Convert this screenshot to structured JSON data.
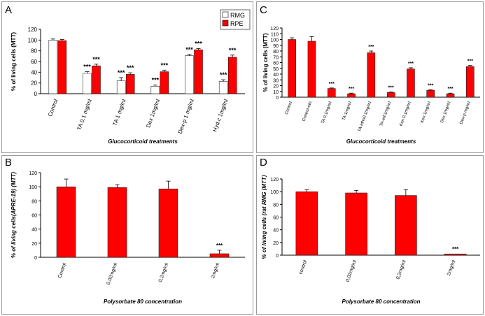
{
  "colors": {
    "rmg": "#ffffff",
    "rpe": "#ff0000",
    "bar": "#ff0000",
    "axis": "#000000"
  },
  "chart_data": [
    {
      "panel": "A",
      "type": "bar",
      "categories": [
        "Control",
        "TA 0.1 mg/ml",
        "TA 1 mg/ml",
        "Dex 1mg/ml",
        "Dex-p 1 mg/ml",
        "Hyd.c 1mg/ml"
      ],
      "series": [
        {
          "name": "RMG",
          "values": [
            100,
            38,
            24,
            14,
            71,
            23
          ],
          "errors": [
            2,
            3,
            6,
            2,
            2,
            3
          ],
          "sig": [
            "",
            "***",
            "***",
            "***",
            "***",
            "***"
          ]
        },
        {
          "name": "RPE",
          "values": [
            99,
            52,
            36,
            41,
            82,
            68
          ],
          "errors": [
            2,
            3,
            3,
            3,
            2,
            4
          ],
          "sig": [
            "",
            "***",
            "***",
            "***",
            "***",
            "***"
          ]
        }
      ],
      "ylabel": "% of living cells (MTT)",
      "xlabel": "Glucocorticoid treatments",
      "ylim": [
        0,
        120
      ],
      "yticks": [
        0,
        20,
        40,
        60,
        80,
        100,
        120
      ],
      "legend": "top-right"
    },
    {
      "panel": "C",
      "type": "bar",
      "categories": [
        "Control",
        "Control-eth",
        "TA 0.1mg/ml",
        "TA 1mg/ml",
        "TA-etho0.1mg/ml",
        "TA-eth1mg/ml",
        "Ken 0.1mg/ml",
        "Ken 1mg/ml",
        "Dex 1mg/ml",
        "Dex-p mg/ml"
      ],
      "values": [
        100,
        97,
        15,
        6,
        77,
        8,
        49,
        12,
        6,
        53
      ],
      "errors": [
        3,
        8,
        1,
        1,
        3,
        1,
        2,
        1,
        1,
        2
      ],
      "sig": [
        "",
        "",
        "***",
        "***",
        "***",
        "***",
        "***",
        "***",
        "***",
        "***"
      ],
      "ylabel": "% of living cells (MTT)",
      "xlabel": "Glucocorticoid treatments",
      "ylim": [
        0,
        120
      ],
      "yticks": [
        0,
        10,
        20,
        30,
        40,
        50,
        60,
        70,
        80,
        90,
        100,
        110,
        120
      ]
    },
    {
      "panel": "B",
      "type": "bar",
      "categories": [
        "Control",
        "0,02mg/ml",
        "0,2mg/ml",
        "2mg/ml"
      ],
      "values": [
        100,
        99,
        97,
        5
      ],
      "errors": [
        11,
        4,
        11,
        5
      ],
      "sig": [
        "",
        "",
        "",
        "***"
      ],
      "ylabel": "% of living cells(APRE-19)  (MTT)",
      "xlabel": "Polysorbate 80 concentration",
      "ylim": [
        0,
        120
      ],
      "yticks": [
        0,
        20,
        40,
        60,
        80,
        100,
        120
      ]
    },
    {
      "panel": "D",
      "type": "bar",
      "categories": [
        "control",
        "0,02mg/ml",
        "0,2mg/ml",
        "2mg/ml"
      ],
      "values": [
        100,
        98,
        94,
        2
      ],
      "errors": [
        3,
        4,
        9,
        0
      ],
      "sig": [
        "",
        "",
        "",
        "***"
      ],
      "ylabel": "% of living cells (rat RMG (MTT)",
      "xlabel": "Polysorbate 80 concentration",
      "ylim": [
        0,
        120
      ],
      "yticks": [
        0,
        20,
        40,
        60,
        80,
        100,
        120
      ]
    }
  ]
}
